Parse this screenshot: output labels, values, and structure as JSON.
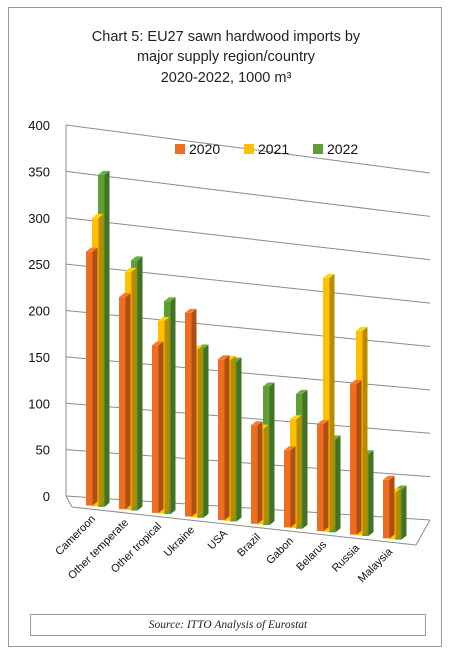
{
  "chart_data": {
    "type": "bar",
    "title_lines": [
      "Chart 5: EU27 sawn hardwood imports by",
      "major supply region/country",
      "2020-2022, 1000 m³"
    ],
    "categories": [
      "Cameroon",
      "Other temperate",
      "Other tropical",
      "Ukraine",
      "USA",
      "Brazil",
      "Gabon",
      "Belarus",
      "Russia",
      "Malaysia"
    ],
    "series": [
      {
        "name": "2020",
        "color": "#ef6d1f",
        "values": [
          273,
          228,
          180,
          219,
          173,
          106,
          83,
          115,
          162,
          63
        ]
      },
      {
        "name": "2021",
        "color": "#ffc000",
        "values": [
          310,
          256,
          207,
          180,
          173,
          103,
          117,
          273,
          220,
          50
        ]
      },
      {
        "name": "2022",
        "color": "#5e9e34",
        "values": [
          357,
          269,
          229,
          182,
          172,
          149,
          145,
          100,
          88,
          54
        ]
      }
    ],
    "y_ticks": [
      "0",
      "50",
      "100",
      "150",
      "200",
      "250",
      "300",
      "350",
      "400"
    ],
    "ylim": [
      0,
      400
    ],
    "grid": true,
    "legend_position": "top-right"
  },
  "source": "Source: ITTO Analysis of Eurostat"
}
